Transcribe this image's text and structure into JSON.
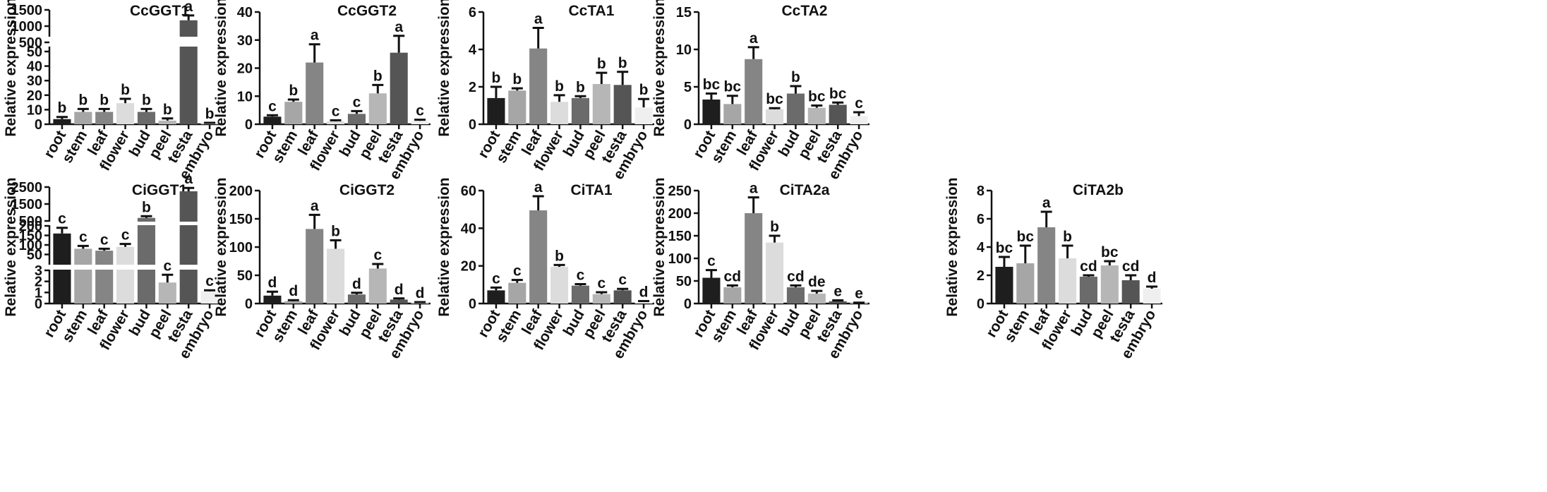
{
  "figure": {
    "categories": [
      "root",
      "stem",
      "leaf",
      "flower",
      "bud",
      "peel",
      "testa",
      "embryo"
    ],
    "bar_colors": [
      "#1e1e1e",
      "#a6a6a6",
      "#858585",
      "#dcdcdc",
      "#6b6b6b",
      "#b6b6b6",
      "#555555",
      "#efefef"
    ]
  },
  "chart_data": [
    {
      "type": "bar",
      "title": "CcGGT1",
      "ylabel": "Relative expression",
      "xlabel": "",
      "categories": [
        "root",
        "stem",
        "leaf",
        "flower",
        "bud",
        "peel",
        "testa",
        "embryo"
      ],
      "values": [
        3.5,
        8.5,
        8.5,
        14.5,
        8.5,
        2.5,
        1180,
        0.5
      ],
      "errors": [
        1.5,
        2,
        2,
        3,
        2,
        1.5,
        150,
        0.5
      ],
      "letters": [
        "b",
        "b",
        "b",
        "b",
        "b",
        "b",
        "a",
        "b"
      ],
      "broken_axis": {
        "lower_range": [
          0,
          50
        ],
        "upper_range": [
          500,
          1500
        ],
        "lower_ticks": [
          0,
          10,
          20,
          30,
          40,
          50
        ],
        "upper_ticks": [
          500,
          1000,
          1500
        ]
      }
    },
    {
      "type": "bar",
      "title": "CcGGT2",
      "ylabel": "Relative expression",
      "xlabel": "",
      "categories": [
        "root",
        "stem",
        "leaf",
        "flower",
        "bud",
        "peel",
        "testa",
        "embryo"
      ],
      "values": [
        2.7,
        8,
        22,
        1,
        3.7,
        11,
        25.5,
        1.2
      ],
      "errors": [
        0.5,
        0.8,
        6.5,
        0.4,
        1,
        3,
        6,
        0.4
      ],
      "letters": [
        "c",
        "b",
        "a",
        "c",
        "c",
        "b",
        "a",
        "c"
      ],
      "ylim": [
        0,
        40
      ],
      "yticks": [
        0,
        10,
        20,
        30,
        40
      ]
    },
    {
      "type": "bar",
      "title": "CcTA1",
      "ylabel": "Relative expression",
      "xlabel": "",
      "categories": [
        "root",
        "stem",
        "leaf",
        "flower",
        "bud",
        "peel",
        "testa",
        "embryo"
      ],
      "values": [
        1.4,
        1.8,
        4.05,
        1.2,
        1.4,
        2.15,
        2.1,
        0.9
      ],
      "errors": [
        0.6,
        0.12,
        1.1,
        0.35,
        0.1,
        0.6,
        0.7,
        0.45
      ],
      "letters": [
        "b",
        "b",
        "a",
        "b",
        "b",
        "b",
        "b",
        "b"
      ],
      "ylim": [
        0,
        6
      ],
      "yticks": [
        0,
        2,
        4,
        6
      ]
    },
    {
      "type": "bar",
      "title": "CcTA2",
      "ylabel": "Relative expression",
      "xlabel": "",
      "categories": [
        "root",
        "stem",
        "leaf",
        "flower",
        "bud",
        "peel",
        "testa",
        "embryo"
      ],
      "values": [
        3.3,
        2.7,
        8.7,
        2,
        4.1,
        2.2,
        2.6,
        1.1
      ],
      "errors": [
        0.8,
        1.1,
        1.6,
        0.15,
        1,
        0.3,
        0.3,
        0.5
      ],
      "letters": [
        "bc",
        "bc",
        "a",
        "bc",
        "b",
        "bc",
        "bc",
        "c"
      ],
      "ylim": [
        0,
        15
      ],
      "yticks": [
        0,
        5,
        10,
        15
      ]
    },
    {
      "type": "bar",
      "title": "CiGGT1",
      "ylabel": "Relative expression",
      "xlabel": "",
      "categories": [
        "root",
        "stem",
        "leaf",
        "flower",
        "bud",
        "peel",
        "testa",
        "embryo"
      ],
      "values": [
        160,
        80,
        70,
        90,
        680,
        1.9,
        2250,
        1.1
      ],
      "errors": [
        30,
        15,
        10,
        15,
        100,
        0.7,
        200,
        0.1
      ],
      "letters": [
        "c",
        "c",
        "c",
        "c",
        "b",
        "c",
        "a",
        "c"
      ],
      "broken_axis": {
        "segments": [
          {
            "range": [
              0,
              3
            ],
            "ticks": [
              0,
              1,
              2,
              3
            ]
          },
          {
            "range": [
              0,
              200
            ],
            "ticks": [
              50,
              100,
              150,
              200
            ]
          },
          {
            "range": [
              500,
              2500
            ],
            "ticks": [
              500,
              1500,
              2500
            ]
          }
        ]
      }
    },
    {
      "type": "bar",
      "title": "CiGGT2",
      "ylabel": "Relative expression",
      "xlabel": "",
      "categories": [
        "root",
        "stem",
        "leaf",
        "flower",
        "bud",
        "peel",
        "testa",
        "embryo"
      ],
      "values": [
        14,
        4,
        132,
        97,
        16,
        62,
        7,
        1.5
      ],
      "errors": [
        7,
        2,
        25,
        15,
        3,
        8,
        2,
        1
      ],
      "letters": [
        "d",
        "d",
        "a",
        "b",
        "d",
        "c",
        "d",
        "d"
      ],
      "ylim": [
        0,
        200
      ],
      "yticks": [
        0,
        50,
        100,
        150,
        200
      ]
    },
    {
      "type": "bar",
      "title": "CiTA1",
      "ylabel": "Relative expression",
      "xlabel": "",
      "categories": [
        "root",
        "stem",
        "leaf",
        "flower",
        "bud",
        "peel",
        "testa",
        "embryo"
      ],
      "values": [
        7,
        11,
        49.5,
        19.5,
        9.5,
        5,
        7,
        0.8
      ],
      "errors": [
        1.5,
        1.5,
        7.5,
        1,
        0.8,
        1,
        0.8,
        0.5
      ],
      "letters": [
        "c",
        "c",
        "a",
        "b",
        "c",
        "c",
        "c",
        "d"
      ],
      "ylim": [
        0,
        60
      ],
      "yticks": [
        0,
        20,
        40,
        60
      ]
    },
    {
      "type": "bar",
      "title": "CiTA2a",
      "ylabel": "Relative expression",
      "xlabel": "",
      "categories": [
        "root",
        "stem",
        "leaf",
        "flower",
        "bud",
        "peel",
        "testa",
        "embryo"
      ],
      "values": [
        57,
        36,
        200,
        135,
        36,
        22,
        5,
        1
      ],
      "errors": [
        17,
        4,
        35,
        15,
        4,
        6,
        2,
        1
      ],
      "letters": [
        "c",
        "cd",
        "a",
        "b",
        "cd",
        "de",
        "e",
        "e"
      ],
      "ylim": [
        0,
        250
      ],
      "yticks": [
        0,
        50,
        100,
        150,
        200,
        250
      ]
    },
    {
      "type": "bar",
      "title": "CiTA2b",
      "ylabel": "Relative expression",
      "xlabel": "",
      "categories": [
        "root",
        "stem",
        "leaf",
        "flower",
        "bud",
        "peel",
        "testa",
        "embryo"
      ],
      "values": [
        2.6,
        2.85,
        5.4,
        3.2,
        1.9,
        2.7,
        1.65,
        1.05
      ],
      "errors": [
        0.7,
        1.25,
        1.1,
        0.9,
        0.1,
        0.3,
        0.35,
        0.15
      ],
      "letters": [
        "bc",
        "bc",
        "a",
        "b",
        "cd",
        "bc",
        "cd",
        "d"
      ],
      "ylim": [
        0,
        8
      ],
      "yticks": [
        0,
        2,
        4,
        6,
        8
      ]
    }
  ]
}
